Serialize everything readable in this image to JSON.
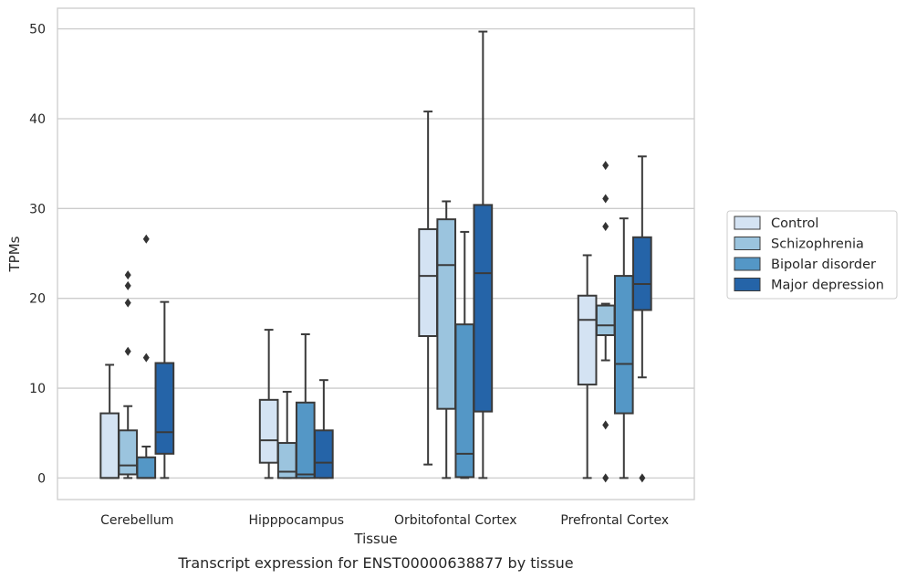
{
  "chart_data": {
    "type": "boxplot",
    "caption": "Transcript expression for ENST00000638877 by tissue",
    "xlabel": "Tissue",
    "ylabel": "TPMs",
    "ylim": [
      -2.4,
      52.3
    ],
    "yticks": [
      0,
      10,
      20,
      30,
      40,
      50
    ],
    "grid": "horizontal",
    "legend_position": "right",
    "categories": [
      "Cerebellum",
      "Hipppocampus",
      "Orbitofontal Cortex",
      "Prefrontal Cortex"
    ],
    "series": [
      {
        "name": "Control",
        "color": "#d4e3f3",
        "boxes": [
          {
            "whislo": 0,
            "q1": 0,
            "med": 0,
            "q3": 7.2,
            "whishi": 12.6,
            "fliers": []
          },
          {
            "whislo": 0,
            "q1": 1.7,
            "med": 4.2,
            "q3": 8.7,
            "whishi": 16.5,
            "fliers": []
          },
          {
            "whislo": 1.5,
            "q1": 15.8,
            "med": 22.5,
            "q3": 27.7,
            "whishi": 40.8,
            "fliers": []
          },
          {
            "whislo": 0,
            "q1": 10.4,
            "med": 17.6,
            "q3": 20.3,
            "whishi": 24.8,
            "fliers": []
          }
        ]
      },
      {
        "name": "Schizophrenia",
        "color": "#9bc4de",
        "boxes": [
          {
            "whislo": 0,
            "q1": 0.4,
            "med": 1.4,
            "q3": 5.3,
            "whishi": 8.0,
            "fliers": [
              14.1,
              19.5,
              21.4,
              22.6
            ]
          },
          {
            "whislo": 0,
            "q1": 0,
            "med": 0.7,
            "q3": 3.9,
            "whishi": 9.6,
            "fliers": []
          },
          {
            "whislo": 0,
            "q1": 7.7,
            "med": 23.7,
            "q3": 28.8,
            "whishi": 30.8,
            "fliers": []
          },
          {
            "whislo": 13.1,
            "q1": 15.9,
            "med": 17.0,
            "q3": 19.2,
            "whishi": 19.4,
            "fliers": [
              0,
              5.9,
              28.0,
              31.1,
              34.8
            ]
          }
        ]
      },
      {
        "name": "Bipolar disorder",
        "color": "#5497c6",
        "boxes": [
          {
            "whislo": 0,
            "q1": 0,
            "med": 0,
            "q3": 2.3,
            "whishi": 3.5,
            "fliers": [
              13.4,
              26.6
            ]
          },
          {
            "whislo": 0,
            "q1": 0,
            "med": 0.4,
            "q3": 8.4,
            "whishi": 16.0,
            "fliers": []
          },
          {
            "whislo": 0,
            "q1": 0.1,
            "med": 2.7,
            "q3": 17.1,
            "whishi": 27.4,
            "fliers": []
          },
          {
            "whislo": 0,
            "q1": 7.2,
            "med": 12.7,
            "q3": 22.5,
            "whishi": 28.9,
            "fliers": []
          }
        ]
      },
      {
        "name": "Major depression",
        "color": "#2564a8",
        "boxes": [
          {
            "whislo": 0,
            "q1": 2.7,
            "med": 5.1,
            "q3": 12.8,
            "whishi": 19.6,
            "fliers": []
          },
          {
            "whislo": 0,
            "q1": 0,
            "med": 1.7,
            "q3": 5.3,
            "whishi": 10.9,
            "fliers": []
          },
          {
            "whislo": 0,
            "q1": 7.4,
            "med": 22.8,
            "q3": 30.4,
            "whishi": 49.7,
            "fliers": []
          },
          {
            "whislo": 11.2,
            "q1": 18.7,
            "med": 21.6,
            "q3": 26.8,
            "whishi": 35.8,
            "fliers": [
              0
            ]
          }
        ]
      }
    ]
  }
}
